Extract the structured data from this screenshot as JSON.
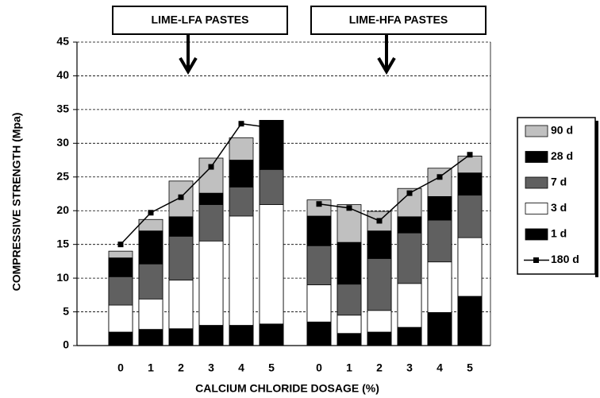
{
  "chart_data": {
    "type": "bar",
    "xlabel": "CALCIUM CHLORIDE DOSAGE (%)",
    "ylabel": "COMPRESSIVE STRENGTH (Mpa)",
    "groups": [
      {
        "label": "LIME-LFA PASTES",
        "categories": [
          "0",
          "1",
          "2",
          "3",
          "4",
          "5"
        ]
      },
      {
        "label": "LIME-HFA PASTES",
        "categories": [
          "0",
          "1",
          "2",
          "3",
          "4",
          "5"
        ]
      }
    ],
    "series": [
      {
        "name": "90 d",
        "color": "#c0c0c0",
        "values": [
          14.0,
          18.7,
          24.4,
          27.8,
          30.8,
          33.4,
          21.6,
          20.9,
          19.9,
          23.3,
          26.3,
          28.1
        ]
      },
      {
        "name": "28 d",
        "color": "#000000",
        "values": [
          13.0,
          17.0,
          19.1,
          22.6,
          27.5,
          33.4,
          19.2,
          15.3,
          17.0,
          19.1,
          22.1,
          25.6
        ]
      },
      {
        "name": "7 d",
        "color": "#606060",
        "values": [
          10.2,
          12.1,
          16.2,
          20.9,
          23.5,
          26.1,
          14.8,
          9.1,
          12.9,
          16.7,
          18.6,
          22.3
        ]
      },
      {
        "name": "3 d",
        "color": "#ffffff",
        "values": [
          6.0,
          6.9,
          9.7,
          15.5,
          19.2,
          20.9,
          9.0,
          4.5,
          5.2,
          9.2,
          12.4,
          16.0
        ]
      },
      {
        "name": "1 d",
        "color": "#000000",
        "values": [
          2.0,
          2.4,
          2.5,
          3.0,
          3.0,
          3.2,
          3.5,
          1.8,
          2.0,
          2.7,
          4.9,
          7.3
        ]
      },
      {
        "name": "180 d",
        "type": "line",
        "color": "#000000",
        "values": [
          15.0,
          19.7,
          22.0,
          26.5,
          32.9,
          32.3,
          21.0,
          20.4,
          18.5,
          22.6,
          25.0,
          28.3
        ]
      }
    ],
    "ylim": [
      0,
      45
    ],
    "yticks": [
      0,
      5,
      10,
      15,
      20,
      25,
      30,
      35,
      40,
      45
    ],
    "grid": true,
    "legend": "right"
  }
}
